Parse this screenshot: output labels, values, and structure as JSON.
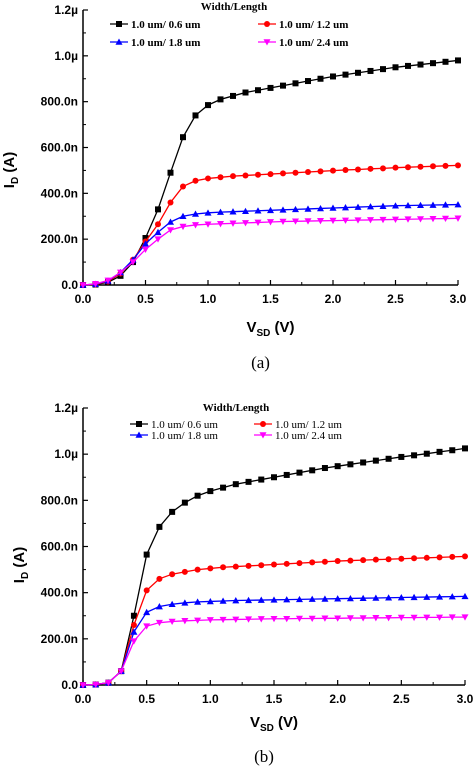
{
  "chart_data": [
    {
      "type": "line",
      "panel_label": "(a)",
      "xlabel": "V",
      "xlabel_sub": "SD",
      "xlabel_unit": " (V)",
      "ylabel": "I",
      "ylabel_sub": "D",
      "ylabel_unit": " (A)",
      "xlim": [
        0,
        3.0
      ],
      "ylim": [
        0,
        1.2
      ],
      "x_ticks": [
        "0.0",
        "0.5",
        "1.0",
        "1.5",
        "2.0",
        "2.5",
        "3.0"
      ],
      "y_ticks": [
        "0.0",
        "200.0n",
        "400.0n",
        "600.0n",
        "800.0n",
        "1.0µ",
        "1.2µ"
      ],
      "legend_title": "Width/Length",
      "legend_placement": "top",
      "x": [
        0,
        0.1,
        0.2,
        0.3,
        0.4,
        0.5,
        0.6,
        0.7,
        0.8,
        0.9,
        1.0,
        1.1,
        1.2,
        1.3,
        1.4,
        1.5,
        1.6,
        1.7,
        1.8,
        1.9,
        2.0,
        2.1,
        2.2,
        2.3,
        2.4,
        2.5,
        2.6,
        2.7,
        2.8,
        2.9,
        3.0
      ],
      "series": [
        {
          "name": "1.0 um/ 0.6 um",
          "color": "#000000",
          "marker": "square",
          "values": [
            0,
            0.002,
            0.012,
            0.04,
            0.1,
            0.205,
            0.33,
            0.49,
            0.645,
            0.74,
            0.785,
            0.81,
            0.825,
            0.84,
            0.85,
            0.86,
            0.87,
            0.88,
            0.89,
            0.9,
            0.91,
            0.918,
            0.926,
            0.934,
            0.942,
            0.95,
            0.956,
            0.962,
            0.968,
            0.974,
            0.98
          ]
        },
        {
          "name": "1.0 um/ 1.2 um",
          "color": "#ff0000",
          "marker": "circle",
          "values": [
            0,
            0.003,
            0.015,
            0.05,
            0.11,
            0.19,
            0.265,
            0.36,
            0.43,
            0.455,
            0.465,
            0.47,
            0.475,
            0.478,
            0.481,
            0.484,
            0.487,
            0.49,
            0.493,
            0.496,
            0.499,
            0.502,
            0.504,
            0.507,
            0.509,
            0.512,
            0.514,
            0.516,
            0.518,
            0.52,
            0.522
          ]
        },
        {
          "name": "1.0 um/ 1.8 um",
          "color": "#0000ff",
          "marker": "triangle-up",
          "values": [
            0,
            0.004,
            0.018,
            0.055,
            0.11,
            0.18,
            0.23,
            0.275,
            0.3,
            0.31,
            0.315,
            0.318,
            0.32,
            0.322,
            0.324,
            0.326,
            0.328,
            0.33,
            0.332,
            0.334,
            0.336,
            0.338,
            0.34,
            0.342,
            0.344,
            0.346,
            0.347,
            0.348,
            0.349,
            0.35,
            0.351
          ]
        },
        {
          "name": "1.0 um/ 2.4 um",
          "color": "#ff00ff",
          "marker": "triangle-down",
          "values": [
            0,
            0.005,
            0.02,
            0.055,
            0.1,
            0.155,
            0.2,
            0.24,
            0.255,
            0.262,
            0.265,
            0.267,
            0.269,
            0.271,
            0.273,
            0.275,
            0.277,
            0.278,
            0.279,
            0.28,
            0.281,
            0.282,
            0.283,
            0.284,
            0.285,
            0.286,
            0.287,
            0.288,
            0.289,
            0.29,
            0.291
          ]
        }
      ]
    },
    {
      "type": "line",
      "panel_label": "(b)",
      "xlabel": "V",
      "xlabel_sub": "SD",
      "xlabel_unit": " (V)",
      "ylabel": "I",
      "ylabel_sub": "D",
      "ylabel_unit": " (A)",
      "xlim": [
        0,
        3.0
      ],
      "ylim": [
        0,
        1.2
      ],
      "x_ticks": [
        "0.0",
        "0.5",
        "1.0",
        "1.5",
        "2.0",
        "2.5",
        "3.0"
      ],
      "y_ticks": [
        "0.0",
        "200.0n",
        "400.0n",
        "600.0n",
        "800.0n",
        "1.0µ",
        "1.2µ"
      ],
      "legend_title": "Width/Length",
      "legend_placement": "top",
      "x": [
        0,
        0.1,
        0.2,
        0.3,
        0.4,
        0.5,
        0.6,
        0.7,
        0.8,
        0.9,
        1.0,
        1.1,
        1.2,
        1.3,
        1.4,
        1.5,
        1.6,
        1.7,
        1.8,
        1.9,
        2.0,
        2.1,
        2.2,
        2.3,
        2.4,
        2.5,
        2.6,
        2.7,
        2.8,
        2.9,
        3.0
      ],
      "series": [
        {
          "name": "1.0 um/ 0.6 um",
          "color": "#000000",
          "marker": "square",
          "values": [
            0,
            0.002,
            0.01,
            0.06,
            0.3,
            0.565,
            0.685,
            0.75,
            0.79,
            0.82,
            0.84,
            0.855,
            0.87,
            0.88,
            0.89,
            0.9,
            0.91,
            0.92,
            0.93,
            0.94,
            0.948,
            0.956,
            0.964,
            0.972,
            0.98,
            0.988,
            0.995,
            1.002,
            1.01,
            1.017,
            1.025
          ]
        },
        {
          "name": "1.0 um/ 1.2 um",
          "color": "#ff0000",
          "marker": "circle",
          "values": [
            0,
            0.002,
            0.01,
            0.06,
            0.26,
            0.41,
            0.46,
            0.48,
            0.49,
            0.5,
            0.505,
            0.51,
            0.513,
            0.516,
            0.519,
            0.522,
            0.525,
            0.528,
            0.531,
            0.534,
            0.537,
            0.539,
            0.541,
            0.543,
            0.545,
            0.547,
            0.549,
            0.551,
            0.553,
            0.555,
            0.557
          ]
        },
        {
          "name": "1.0 um/ 1.8 um",
          "color": "#0000ff",
          "marker": "triangle-up",
          "values": [
            0,
            0.002,
            0.01,
            0.06,
            0.23,
            0.315,
            0.34,
            0.35,
            0.356,
            0.36,
            0.362,
            0.364,
            0.366,
            0.367,
            0.368,
            0.369,
            0.37,
            0.371,
            0.372,
            0.373,
            0.374,
            0.375,
            0.376,
            0.377,
            0.378,
            0.379,
            0.38,
            0.381,
            0.382,
            0.383,
            0.384
          ]
        },
        {
          "name": "1.0 um/ 2.4 um",
          "color": "#ff00ff",
          "marker": "triangle-down",
          "values": [
            0,
            0.002,
            0.01,
            0.06,
            0.19,
            0.255,
            0.27,
            0.275,
            0.278,
            0.28,
            0.282,
            0.283,
            0.284,
            0.285,
            0.286,
            0.287,
            0.287,
            0.288,
            0.288,
            0.289,
            0.289,
            0.29,
            0.29,
            0.291,
            0.291,
            0.292,
            0.292,
            0.293,
            0.293,
            0.294,
            0.294
          ]
        }
      ]
    }
  ]
}
